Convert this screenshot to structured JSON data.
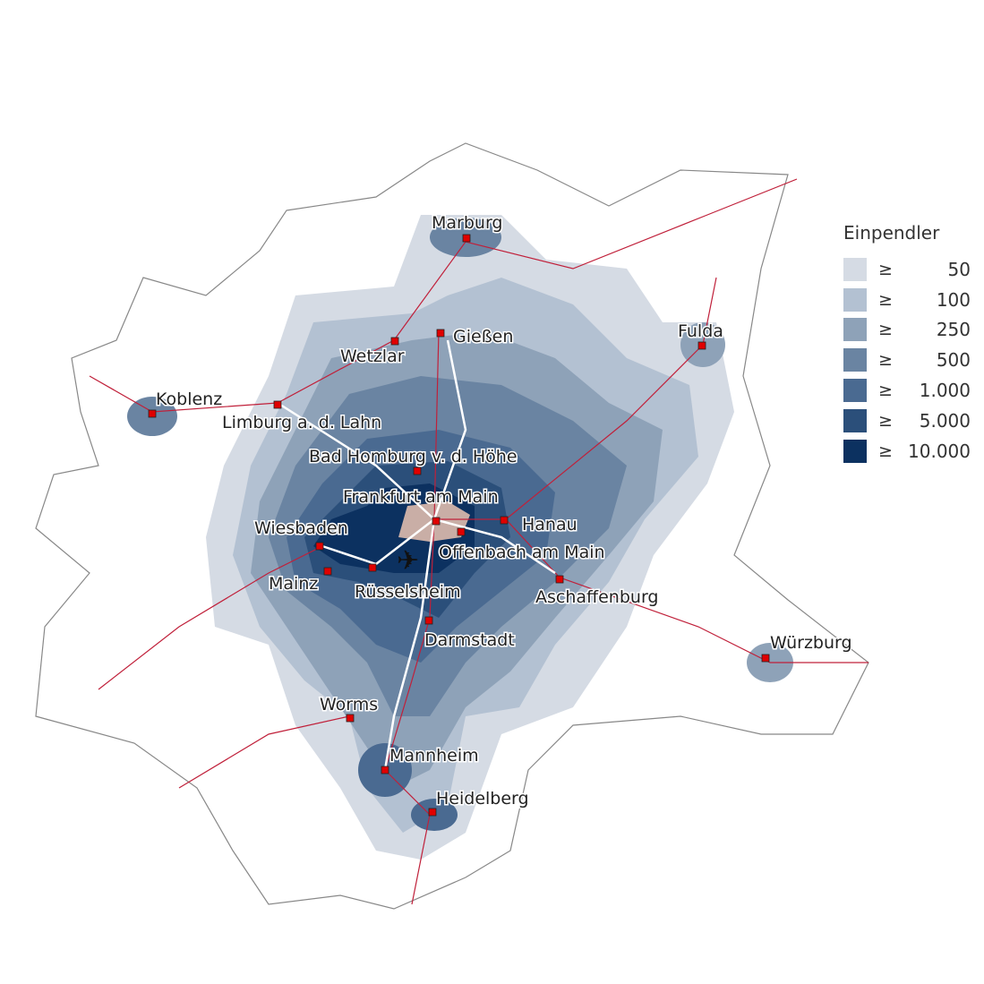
{
  "legend": {
    "title": "Einpendler",
    "symbol": "≥",
    "classes": [
      {
        "label": "50",
        "color": "#d5dbe4"
      },
      {
        "label": "100",
        "color": "#b3c1d2"
      },
      {
        "label": "250",
        "color": "#8ea2b8"
      },
      {
        "label": "500",
        "color": "#6a84a2"
      },
      {
        "label": "1.000",
        "color": "#4a6a91"
      },
      {
        "label": "5.000",
        "color": "#2b4f7a"
      },
      {
        "label": "10.000",
        "color": "#0c3160"
      }
    ]
  },
  "colors": {
    "destination": "#c9aea6",
    "city_marker": "#e00000",
    "railway": "#c0203a",
    "highway": "#ffffff"
  },
  "cities": [
    "Marburg",
    "Gießen",
    "Wetzlar",
    "Fulda",
    "Koblenz",
    "Limburg a. d. Lahn",
    "Bad Homburg v. d. Höhe",
    "Frankfurt am Main",
    "Hanau",
    "Wiesbaden",
    "Offenbach am Main",
    "Mainz",
    "Rüsselsheim",
    "Aschaffenburg",
    "Darmstadt",
    "Würzburg",
    "Worms",
    "Mannheim",
    "Heidelberg"
  ],
  "airport_icon": "airplane-icon"
}
